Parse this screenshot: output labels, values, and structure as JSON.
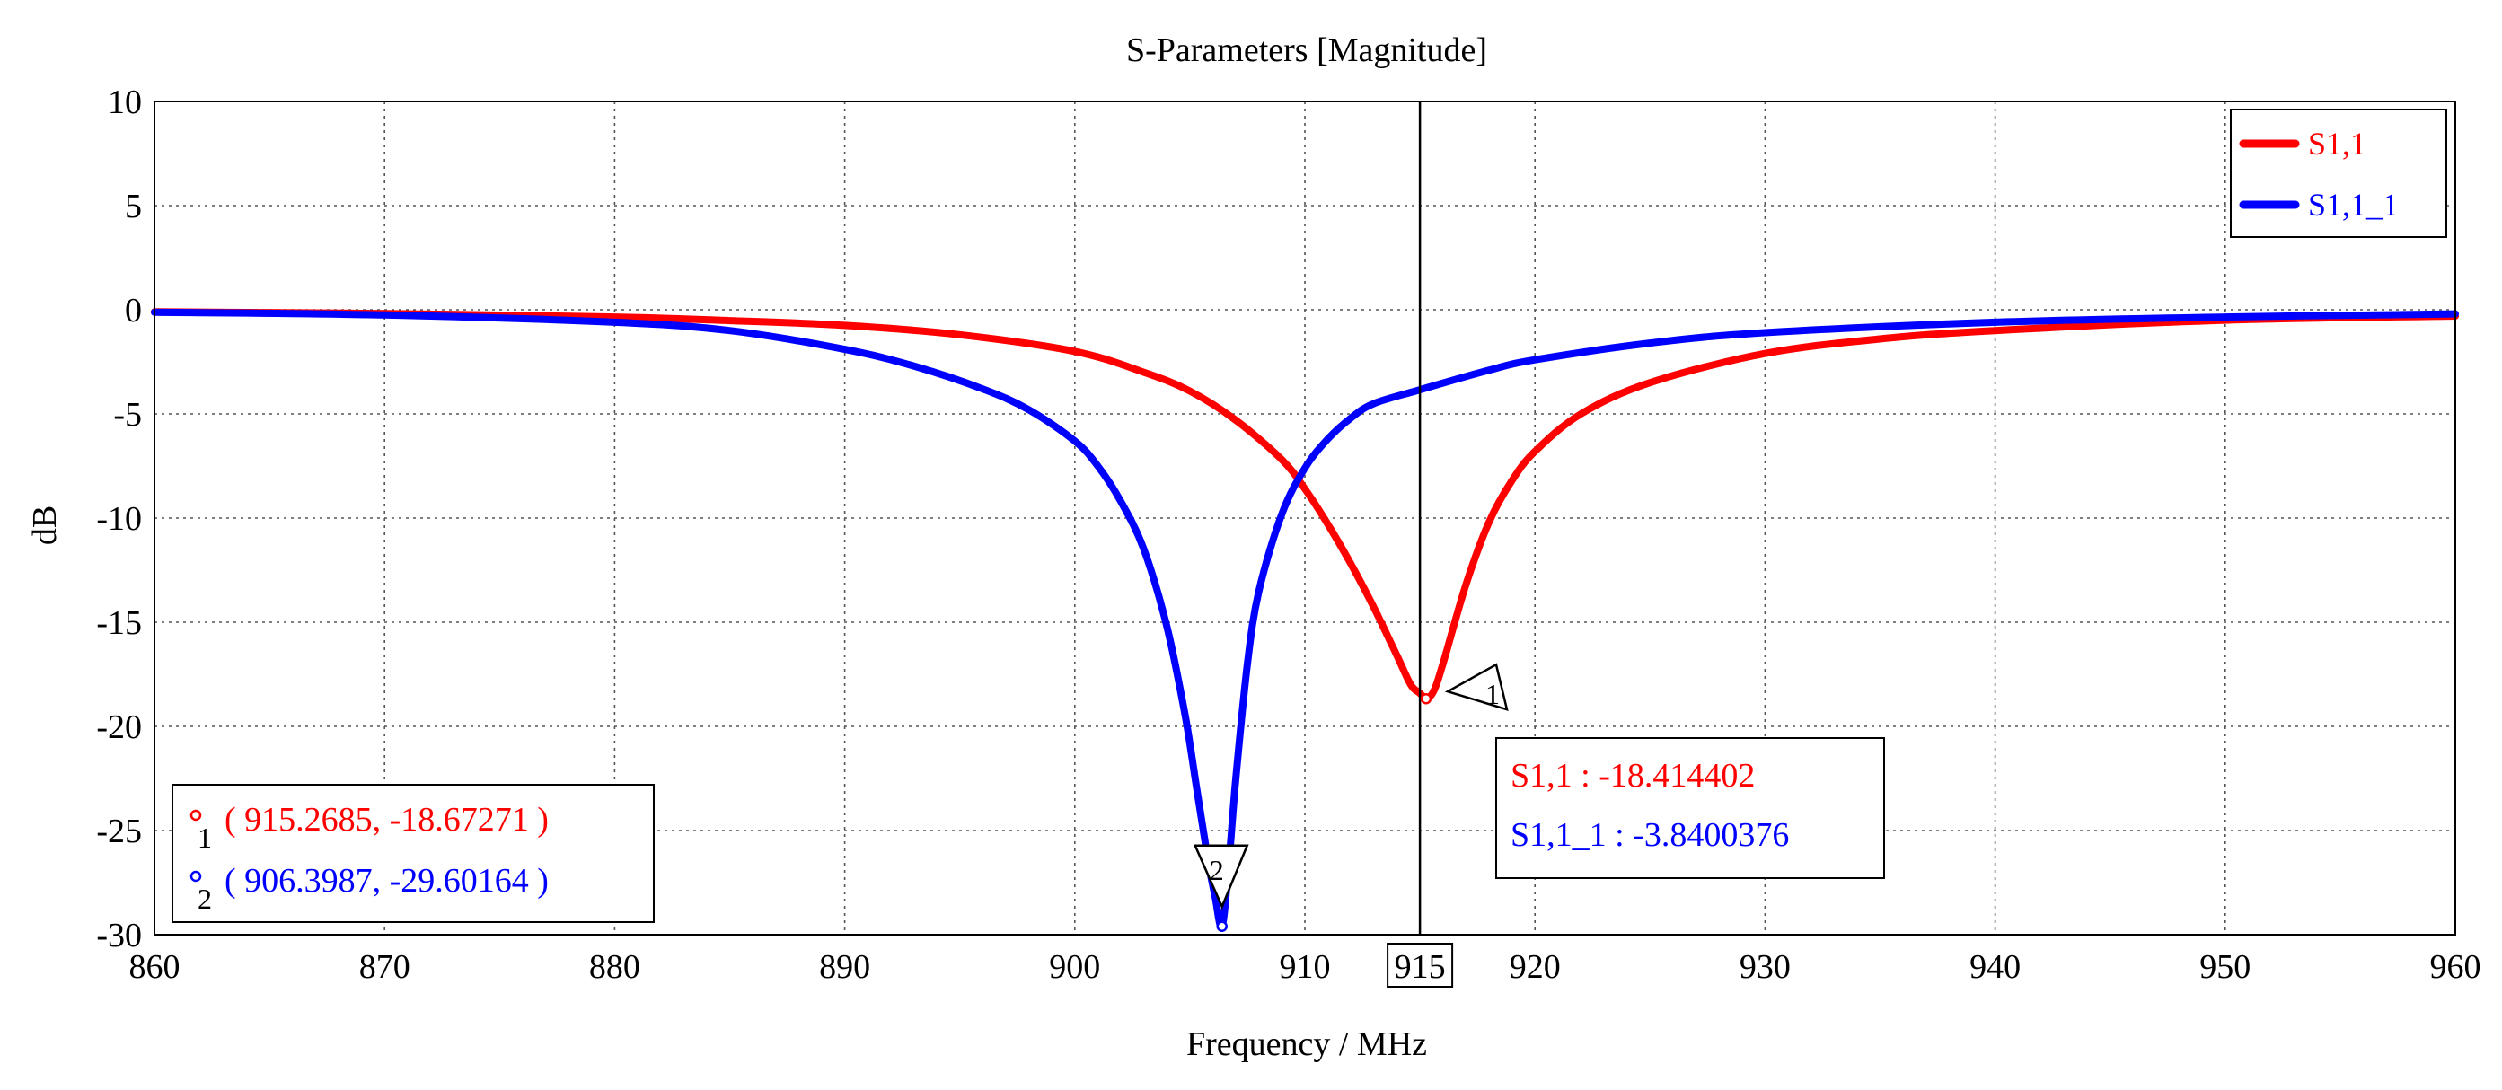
{
  "chart_data": {
    "type": "line",
    "title": "S-Parameters [Magnitude]",
    "xlabel": "Frequency / MHz",
    "ylabel": "dB",
    "xlim": [
      860,
      960
    ],
    "ylim": [
      -30,
      10
    ],
    "x_ticks": [
      "860",
      "870",
      "880",
      "890",
      "900",
      "910",
      "915",
      "920",
      "930",
      "940",
      "950",
      "960"
    ],
    "y_ticks": [
      "10",
      "5",
      "0",
      "-5",
      "-10",
      "-15",
      "-20",
      "-25",
      "-30"
    ],
    "grid": true,
    "legend_position": "top-right",
    "cursor_x": 915,
    "cursor_label": "915",
    "series": [
      {
        "name": "S1,1",
        "color": "#ff0000",
        "x": [
          860,
          870,
          880,
          885,
          890,
          895,
          900,
          903,
          905,
          907,
          909,
          910,
          911,
          912,
          913,
          914,
          914.6,
          915.0,
          915.27,
          915.6,
          916,
          917,
          918,
          919,
          920,
          922,
          925,
          930,
          935,
          940,
          950,
          960
        ],
        "values": [
          -0.1,
          -0.18,
          -0.35,
          -0.52,
          -0.75,
          -1.2,
          -2.0,
          -3.0,
          -3.9,
          -5.3,
          -7.2,
          -8.6,
          -10.3,
          -12.2,
          -14.3,
          -16.6,
          -18.0,
          -18.41,
          -18.67,
          -18.3,
          -17.0,
          -13.2,
          -10.2,
          -8.2,
          -6.8,
          -5.0,
          -3.5,
          -2.1,
          -1.4,
          -1.0,
          -0.5,
          -0.3
        ]
      },
      {
        "name": "S1,1_1",
        "color": "#0000ff",
        "x": [
          860,
          870,
          880,
          885,
          890,
          893,
          896,
          898,
          900,
          901,
          902,
          903,
          904,
          904.8,
          905.3,
          905.8,
          906.1,
          906.4,
          906.7,
          907.0,
          907.5,
          908,
          909,
          910,
          911,
          912,
          913,
          915,
          918,
          920,
          925,
          930,
          940,
          950,
          960
        ],
        "values": [
          -0.12,
          -0.25,
          -0.6,
          -1.0,
          -1.9,
          -2.7,
          -3.8,
          -4.8,
          -6.3,
          -7.5,
          -9.2,
          -11.5,
          -15.2,
          -19.5,
          -23.0,
          -26.5,
          -28.2,
          -29.6,
          -26.5,
          -22.5,
          -17.0,
          -13.5,
          -9.8,
          -7.6,
          -6.2,
          -5.2,
          -4.5,
          -3.84,
          -2.9,
          -2.4,
          -1.6,
          -1.1,
          -0.6,
          -0.35,
          -0.2
        ]
      }
    ],
    "markers": [
      {
        "id": "1",
        "x": 915.2685,
        "y": -18.67271,
        "color": "#ff0000",
        "label": "( 915.2685, -18.67271 )"
      },
      {
        "id": "2",
        "x": 906.3987,
        "y": -29.60164,
        "color": "#0000ff",
        "label": "( 906.3987, -29.60164 )"
      }
    ],
    "cursor_readout": [
      {
        "text": "S1,1 : -18.414402",
        "color": "#ff0000"
      },
      {
        "text": "S1,1_1 : -3.8400376",
        "color": "#0000ff"
      }
    ]
  }
}
